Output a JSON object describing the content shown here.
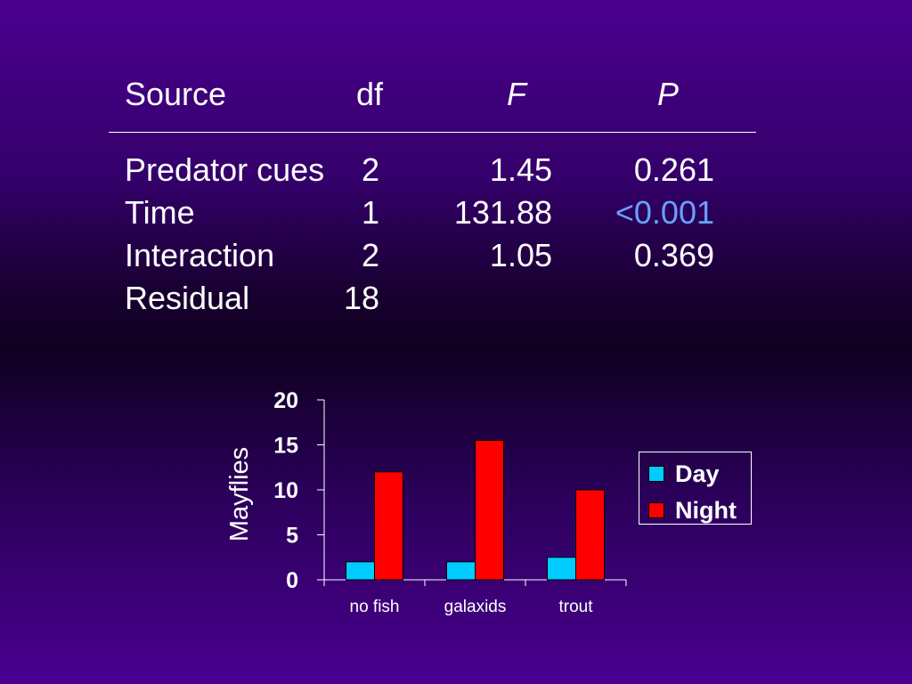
{
  "table": {
    "headers": [
      "Source",
      "df",
      "F",
      "P"
    ],
    "rows": [
      {
        "source": "Predator cues",
        "df": "2",
        "f": "1.45",
        "p": "0.261"
      },
      {
        "source": "Time",
        "df": "1",
        "f": "131.88",
        "p": "<0.001"
      },
      {
        "source": "Interaction",
        "df": "2",
        "f": "1.05",
        "p": "0.369"
      },
      {
        "source": "Residual",
        "df": "18",
        "f": "",
        "p": ""
      }
    ]
  },
  "colors": {
    "day": "#00ccff",
    "night": "#ff0000",
    "significant": "#6aa0ff"
  },
  "chart_data": {
    "type": "bar",
    "categories": [
      "no fish",
      "galaxids",
      "trout"
    ],
    "series": [
      {
        "name": "Day",
        "values": [
          2,
          2,
          2.5
        ]
      },
      {
        "name": "Night",
        "values": [
          12,
          15.5,
          10
        ]
      }
    ],
    "xlabel": "",
    "ylabel": "Mayflies",
    "ylim": [
      0,
      20
    ],
    "yticks": [
      0,
      5,
      10,
      15,
      20
    ],
    "legend": "right",
    "grid": false
  }
}
